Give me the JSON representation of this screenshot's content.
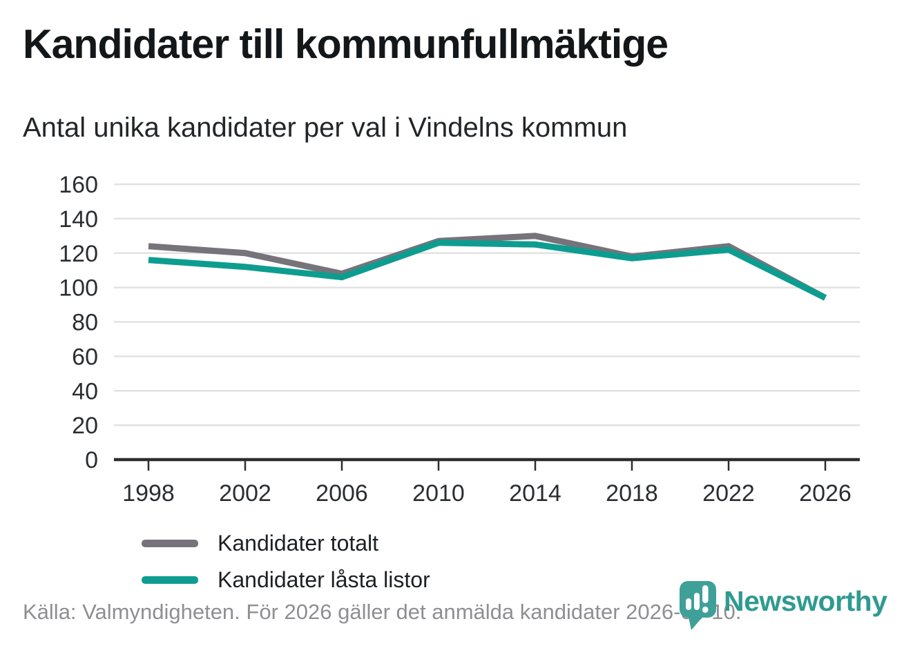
{
  "header": {
    "title": "Kandidater till kommunfullmäktige",
    "subtitle": "Antal unika kandidater per val i Vindelns kommun"
  },
  "footer": {
    "source": "Källa: Valmyndigheten. För 2026 gäller det anmälda kandidater 2026-04-10.",
    "brand": "Newsworthy",
    "brand_color": "#2f9a90"
  },
  "chart_data": {
    "type": "line",
    "title": "Kandidater till kommunfullmäktige",
    "subtitle": "Antal unika kandidater per val i Vindelns kommun",
    "categories": [
      "1998",
      "2002",
      "2006",
      "2010",
      "2014",
      "2018",
      "2022",
      "2026"
    ],
    "series": [
      {
        "name": "Kandidater totalt",
        "color": "#77737a",
        "values": [
          124,
          120,
          108,
          127,
          130,
          118,
          124,
          94
        ]
      },
      {
        "name": "Kandidater låsta listor",
        "color": "#0d9d90",
        "values": [
          116,
          112,
          106,
          126,
          125,
          117,
          122,
          94
        ]
      }
    ],
    "xlabel": "",
    "ylabel": "",
    "ylim": [
      0,
      160
    ],
    "yticks": [
      0,
      20,
      40,
      60,
      80,
      100,
      120,
      140,
      160
    ],
    "grid": true,
    "gridline_color": "#e2e2e2",
    "axis_color": "#2d2d2d",
    "legend_position": "inside-left"
  }
}
